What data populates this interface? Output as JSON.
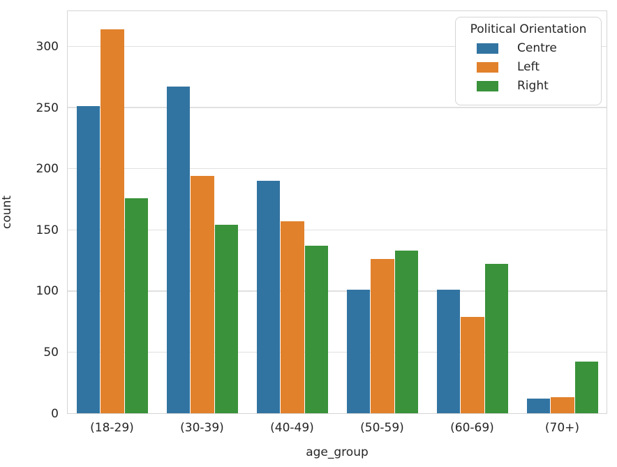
{
  "chart_data": {
    "type": "bar",
    "title": "",
    "xlabel": "age_group",
    "ylabel": "count",
    "categories": [
      "(18-29)",
      "(30-39)",
      "(40-49)",
      "(50-59)",
      "(60-69)",
      "(70+)"
    ],
    "series": [
      {
        "name": "Centre",
        "color": "#3274a1",
        "values": [
          251,
          267,
          190,
          101,
          101,
          12
        ]
      },
      {
        "name": "Left",
        "color": "#e1812c",
        "values": [
          314,
          194,
          157,
          126,
          79,
          13
        ]
      },
      {
        "name": "Right",
        "color": "#3a923a",
        "values": [
          176,
          154,
          137,
          133,
          122,
          42
        ]
      }
    ],
    "legend": {
      "title": "Political Orientation",
      "position": "upper right"
    },
    "ylim": [
      0,
      330
    ],
    "yticks": [
      0,
      50,
      100,
      150,
      200,
      250,
      300
    ],
    "grid": true,
    "group_width_fraction": 0.8
  },
  "colors": {
    "background": "#ffffff",
    "grid": "#e0e0e0",
    "spine": "#d5d5d5",
    "text": "#262626"
  }
}
